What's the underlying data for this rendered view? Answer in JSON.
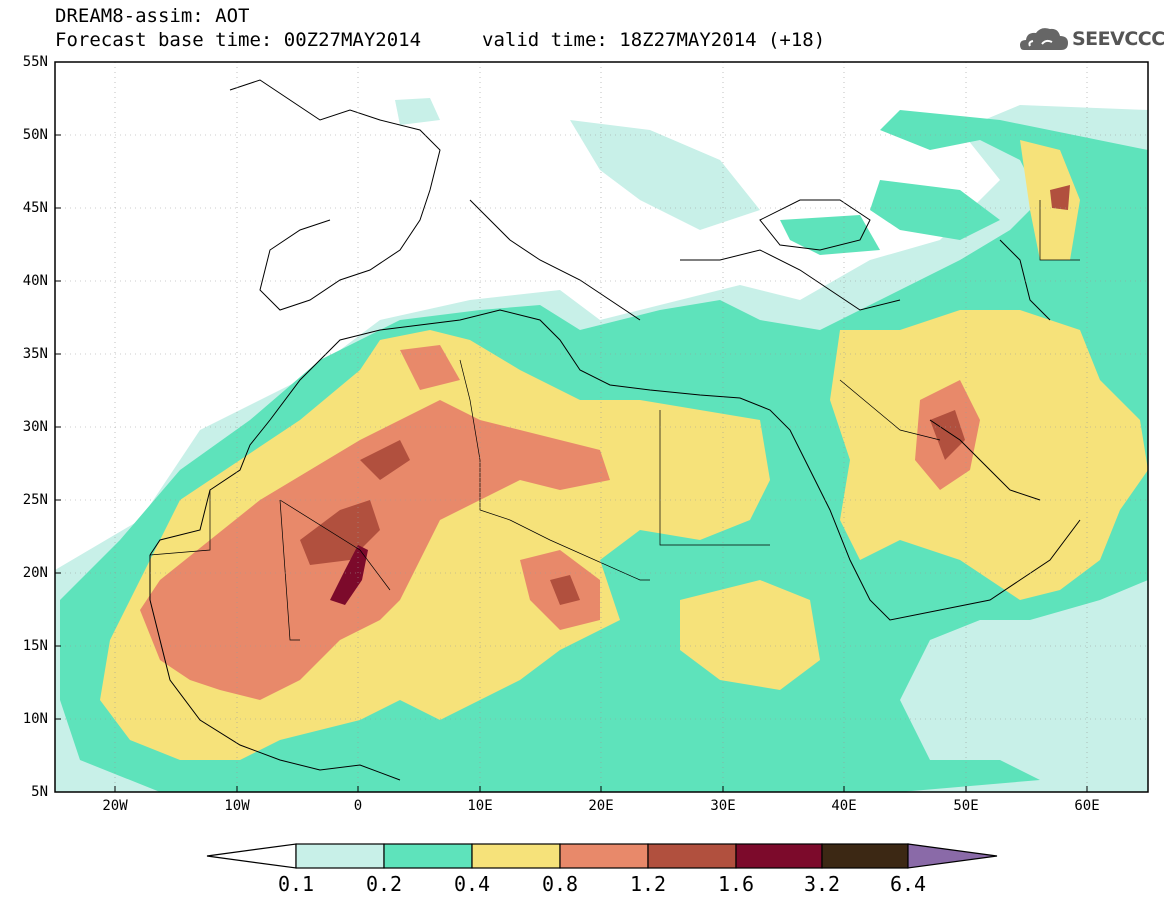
{
  "header": {
    "title": "DREAM8-assim: AOT",
    "base_time": "Forecast base time: 00Z27MAY2014",
    "valid_time": "valid time: 18Z27MAY2014 (+18)"
  },
  "logo": {
    "text": "SEEVCCC",
    "icon": "cloud-icon"
  },
  "map": {
    "lat_labels": [
      "55N",
      "50N",
      "45N",
      "40N",
      "35N",
      "30N",
      "25N",
      "20N",
      "15N",
      "10N",
      "5N"
    ],
    "lon_labels": [
      "20W",
      "10W",
      "0",
      "10E",
      "20E",
      "30E",
      "40E",
      "50E",
      "60E"
    ],
    "grid": "dotted"
  },
  "colorbar": {
    "levels": [
      "0.1",
      "0.2",
      "0.4",
      "0.8",
      "1.2",
      "1.6",
      "3.2",
      "6.4"
    ],
    "colors": [
      "#c8f0e8",
      "#5ee3bb",
      "#f6e27a",
      "#e8896a",
      "#b1503e",
      "#7c0a2b",
      "#3c2814",
      "#8a6aa8"
    ]
  }
}
